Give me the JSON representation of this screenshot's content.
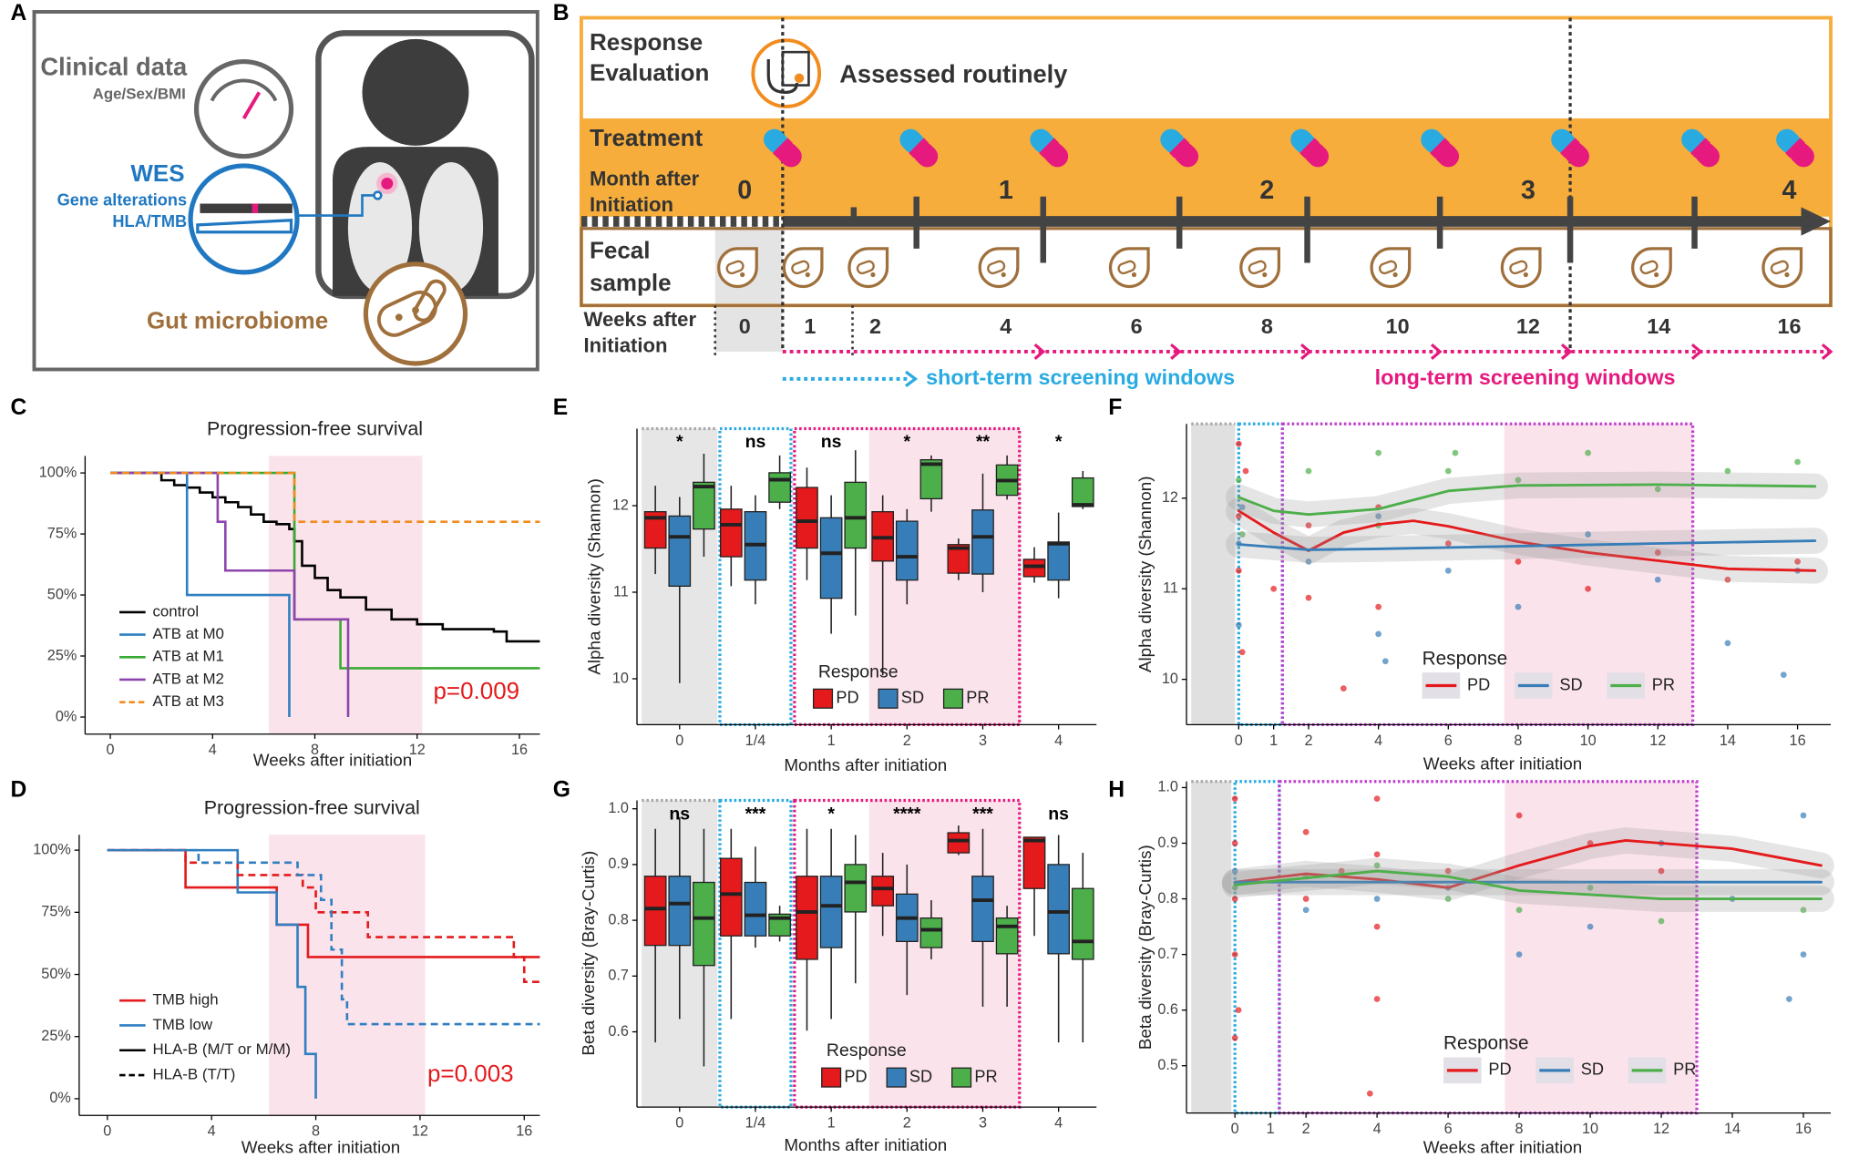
{
  "panel_a": {
    "panel": "A",
    "clinical_title": "Clinical data",
    "clinical_sub": "Age/Sex/BMI",
    "wes_title": "WES",
    "wes_line1": "Gene alterations",
    "wes_line2": "HLA/TMB",
    "microbiome": "Gut microbiome"
  },
  "panel_b": {
    "panel": "B",
    "response_lines": [
      "Response",
      "Evaluation"
    ],
    "assessed": "Assessed routinely",
    "treatment": "Treatment",
    "month_lines": [
      "Month after",
      "Initiation"
    ],
    "months": [
      0,
      1,
      2,
      3,
      4
    ],
    "fecal_lines": [
      "Fecal",
      "sample"
    ],
    "weeks_lines": [
      "Weeks after",
      "Initiation"
    ],
    "weeks": [
      0,
      1,
      2,
      4,
      6,
      8,
      10,
      12,
      14,
      16
    ],
    "short_term": "short-term screening windows",
    "long_term": "long-term screening windows"
  },
  "chart_data": [
    {
      "panel": "C",
      "type": "km",
      "title": "Progression-free survival",
      "xlabel": "Weeks after initiation",
      "xlim": [
        -0.8,
        16.8
      ],
      "xticks": [
        0,
        4,
        8,
        12,
        16
      ],
      "ylim": [
        -7,
        107
      ],
      "yticks": [
        {
          "value": 0,
          "label": "0%"
        },
        {
          "value": 25,
          "label": "25%"
        },
        {
          "value": 50,
          "label": "50%"
        },
        {
          "value": 75,
          "label": "75%"
        },
        {
          "value": 100,
          "label": "100%"
        }
      ],
      "shade": [
        6.2,
        12.2
      ],
      "annotation": "p=0.009",
      "annotation_color": "#e41a1c",
      "series": [
        {
          "name": "control",
          "color": "#000000",
          "dash": false,
          "x": [
            0,
            2,
            2.5,
            3,
            3.5,
            4,
            4.5,
            5,
            5.5,
            6,
            6.5,
            7,
            7.2,
            7.5,
            8,
            8.5,
            9,
            10,
            11,
            12,
            13,
            14,
            15,
            15.5,
            16.8
          ],
          "values": [
            100,
            97,
            95,
            94,
            92,
            90,
            88,
            86,
            83,
            80,
            79,
            77,
            72,
            62,
            57,
            52,
            49,
            44,
            40,
            38,
            36,
            36,
            35,
            31,
            31
          ]
        },
        {
          "name": "ATB at M0",
          "color": "#2f7fc1",
          "dash": false,
          "x": [
            0,
            3,
            7
          ],
          "values": [
            100,
            50,
            0
          ]
        },
        {
          "name": "ATB at M1",
          "color": "#3aaa35",
          "dash": false,
          "x": [
            0,
            7.2,
            9,
            16.8
          ],
          "values": [
            100,
            40,
            20,
            20
          ]
        },
        {
          "name": "ATB at M2",
          "color": "#8e44ad",
          "dash": false,
          "x": [
            0,
            4.2,
            4.5,
            7.2,
            9.3
          ],
          "values": [
            100,
            80,
            60,
            40,
            0
          ]
        },
        {
          "name": "ATB at M3",
          "color": "#f28c1e",
          "dash": true,
          "x": [
            0,
            7.2,
            16.8
          ],
          "values": [
            100,
            80,
            80
          ]
        }
      ]
    },
    {
      "panel": "D",
      "type": "km",
      "title": "Progression-free survival",
      "xlabel": "Weeks after initiation",
      "xlim": [
        -0.9,
        16.6
      ],
      "xticks": [
        0,
        4,
        8,
        12,
        16
      ],
      "ylim": [
        -6.7,
        106.2
      ],
      "yticks": [
        {
          "value": 0,
          "label": "0%"
        },
        {
          "value": 25,
          "label": "25%"
        },
        {
          "value": 50,
          "label": "50%"
        },
        {
          "value": 75,
          "label": "75%"
        },
        {
          "value": 100,
          "label": "100%"
        }
      ],
      "shade": [
        6.2,
        12.2
      ],
      "annotation": "p=0.003",
      "annotation_color": "#e41a1c",
      "legend": [
        {
          "label": "TMB high",
          "color": "#e41a1c",
          "dash": false
        },
        {
          "label": "TMB low",
          "color": "#2f7fc1",
          "dash": false
        },
        {
          "label": "HLA-B (M/T or M/M)",
          "color": "#000000",
          "dash": false
        },
        {
          "label": "HLA-B (T/T)",
          "color": "#000000",
          "dash": true
        }
      ],
      "series": [
        {
          "color": "#e41a1c",
          "dash": false,
          "x": [
            0,
            3,
            6.5,
            7.7,
            16.6
          ],
          "values": [
            100,
            85,
            70,
            57,
            57
          ]
        },
        {
          "color": "#2f7fc1",
          "dash": false,
          "x": [
            0,
            5,
            6.5,
            7.3,
            7.6,
            8
          ],
          "values": [
            100,
            83,
            70,
            45,
            18,
            0
          ]
        },
        {
          "color": "#e41a1c",
          "dash": true,
          "x": [
            0,
            3,
            5,
            7.5,
            8,
            10,
            15.6,
            16,
            16.6
          ],
          "values": [
            100,
            95,
            90,
            85,
            75,
            65,
            57,
            47,
            47
          ]
        },
        {
          "color": "#2f7fc1",
          "dash": true,
          "x": [
            0,
            3.5,
            7.3,
            8.2,
            8.6,
            9,
            9.2,
            16.6
          ],
          "values": [
            100,
            95,
            90,
            80,
            60,
            40,
            30,
            30
          ]
        }
      ]
    },
    {
      "panel": "E",
      "type": "box",
      "ylabel": "Alpha diversity (Shannon)",
      "xlabel": "Months after initiation",
      "categories": [
        "0",
        "1/4",
        "1",
        "2",
        "3",
        "4"
      ],
      "significance": [
        "*",
        "ns",
        "ns",
        "*",
        "**",
        "*"
      ],
      "ylim": [
        9.47,
        12.89
      ],
      "yticks": [
        10,
        11,
        12
      ],
      "legend_title": "Response",
      "series": [
        {
          "name": "PD",
          "color": "#e41a1c",
          "values": [
            [
              11.21,
              11.51,
              11.86,
              11.93,
              12.23
            ],
            [
              11.07,
              11.41,
              11.78,
              11.96,
              12.23
            ],
            [
              11.14,
              11.51,
              11.82,
              12.21,
              12.44
            ],
            [
              10.04,
              11.36,
              11.63,
              11.93,
              12.12
            ],
            [
              11.14,
              11.22,
              11.51,
              11.55,
              11.62
            ],
            [
              11.11,
              11.18,
              11.3,
              11.38,
              11.52
            ]
          ]
        },
        {
          "name": "SD",
          "color": "#377eb8",
          "values": [
            [
              9.95,
              11.07,
              11.64,
              11.88,
              12.1
            ],
            [
              10.86,
              11.14,
              11.55,
              11.93,
              12.12
            ],
            [
              10.52,
              10.93,
              11.45,
              11.86,
              12.12
            ],
            [
              10.86,
              11.14,
              11.41,
              11.82,
              11.96
            ],
            [
              11.0,
              11.21,
              11.64,
              11.95,
              12.37
            ],
            [
              10.93,
              11.14,
              11.56,
              11.58,
              11.92
            ]
          ]
        },
        {
          "name": "PR",
          "color": "#4daf4a",
          "values": [
            [
              11.41,
              11.73,
              12.22,
              12.27,
              12.6
            ],
            [
              11.96,
              12.04,
              12.3,
              12.38,
              12.58
            ],
            [
              10.73,
              11.51,
              11.86,
              12.27,
              12.64
            ],
            [
              11.93,
              12.08,
              12.48,
              12.53,
              12.58
            ],
            [
              12.07,
              12.12,
              12.29,
              12.47,
              12.58
            ],
            [
              11.96,
              11.99,
              12.01,
              12.32,
              12.4
            ]
          ]
        }
      ]
    },
    {
      "panel": "F",
      "type": "scatter",
      "ylabel": "Alpha diversity (Shannon)",
      "xlabel": "Weeks after initiation",
      "xlim": [
        -1.36,
        16.95
      ],
      "xticks": [
        0,
        1,
        2,
        4,
        6,
        8,
        10,
        12,
        14,
        16
      ],
      "ylim": [
        9.5,
        12.82
      ],
      "yticks": [
        10,
        11,
        12
      ],
      "legend_title": "Response",
      "series": [
        {
          "name": "PD",
          "color": "#e41a1c",
          "x": [
            0,
            0,
            0,
            0.2,
            1,
            2,
            2,
            4,
            4,
            6,
            8,
            10,
            12,
            14,
            16,
            0.1,
            3
          ],
          "values": [
            12.6,
            11.8,
            11.2,
            12.3,
            11.0,
            10.9,
            11.7,
            11.9,
            10.8,
            11.5,
            11.3,
            11.0,
            11.4,
            11.1,
            11.3,
            10.3,
            9.9
          ],
          "smooth_x": [
            0,
            1,
            2,
            3,
            4,
            5,
            6,
            8,
            10,
            12,
            14,
            16.5
          ],
          "smooth": [
            11.86,
            11.62,
            11.42,
            11.62,
            11.71,
            11.75,
            11.69,
            11.52,
            11.4,
            11.31,
            11.22,
            11.2
          ]
        },
        {
          "name": "SD",
          "color": "#377eb8",
          "x": [
            0,
            0,
            0.1,
            2,
            4,
            4,
            6,
            8,
            10,
            12,
            14,
            15.6,
            16,
            4.2
          ],
          "values": [
            11.5,
            10.6,
            11.9,
            11.3,
            10.5,
            11.8,
            11.2,
            10.8,
            11.6,
            11.1,
            10.4,
            10.05,
            11.2,
            10.2
          ],
          "smooth_x": [
            0,
            2,
            4,
            8,
            12,
            16.5
          ],
          "smooth": [
            11.49,
            11.43,
            11.44,
            11.47,
            11.5,
            11.53
          ]
        },
        {
          "name": "PR",
          "color": "#4daf4a",
          "x": [
            0,
            0.1,
            2,
            4,
            4,
            6,
            8,
            10,
            12,
            14,
            16,
            6.2
          ],
          "values": [
            12.2,
            11.6,
            12.3,
            12.5,
            11.7,
            12.3,
            12.2,
            12.5,
            12.1,
            12.3,
            12.4,
            12.5
          ],
          "smooth_x": [
            0,
            1,
            2,
            4,
            6,
            8,
            12,
            16.5
          ],
          "smooth": [
            12.01,
            11.86,
            11.82,
            11.88,
            12.08,
            12.14,
            12.15,
            12.13
          ]
        }
      ]
    },
    {
      "panel": "G",
      "type": "box",
      "ylabel": "Beta diversity (Bray-Curtis)",
      "xlabel": "Months after initiation",
      "categories": [
        "0",
        "1/4",
        "1",
        "2",
        "3",
        "4"
      ],
      "significance": [
        "ns",
        "***",
        "*",
        "****",
        "***",
        "ns"
      ],
      "ylim": [
        0.465,
        1.015
      ],
      "yticks": [
        0.6,
        0.7,
        0.8,
        0.9,
        {
          "value": 1,
          "label": "1.0"
        }
      ],
      "legend_title": "Response",
      "series": [
        {
          "name": "PD",
          "color": "#e41a1c",
          "values": [
            [
              0.581,
              0.755,
              0.821,
              0.879,
              0.964
            ],
            [
              0.623,
              0.772,
              0.847,
              0.911,
              0.964
            ],
            [
              0.602,
              0.73,
              0.815,
              0.879,
              0.964
            ],
            [
              0.772,
              0.826,
              0.857,
              0.879,
              0.921
            ],
            [
              0.917,
              0.921,
              0.943,
              0.957,
              0.97
            ],
            [
              0.772,
              0.857,
              0.943,
              0.949,
              0.949
            ]
          ]
        },
        {
          "name": "SD",
          "color": "#377eb8",
          "values": [
            [
              0.623,
              0.755,
              0.83,
              0.879,
              0.985
            ],
            [
              0.751,
              0.772,
              0.809,
              0.868,
              0.932
            ],
            [
              0.623,
              0.751,
              0.826,
              0.879,
              0.964
            ],
            [
              0.666,
              0.762,
              0.804,
              0.847,
              0.9
            ],
            [
              0.645,
              0.762,
              0.836,
              0.879,
              0.964
            ],
            [
              0.581,
              0.74,
              0.815,
              0.9,
              0.953
            ]
          ]
        },
        {
          "name": "PR",
          "color": "#4daf4a",
          "values": [
            [
              0.538,
              0.719,
              0.804,
              0.868,
              0.964
            ],
            [
              0.762,
              0.772,
              0.804,
              0.811,
              0.826
            ],
            [
              0.687,
              0.815,
              0.868,
              0.9,
              0.953
            ],
            [
              0.73,
              0.751,
              0.783,
              0.804,
              0.836
            ],
            [
              0.645,
              0.74,
              0.789,
              0.804,
              0.826
            ],
            [
              0.581,
              0.73,
              0.762,
              0.857,
              0.921
            ]
          ]
        }
      ]
    },
    {
      "panel": "H",
      "type": "scatter",
      "ylabel": "Beta diversity (Bray-Curtis)",
      "xlabel": "Weeks after initiation",
      "xlim": [
        -1.23,
        16.77
      ],
      "xticks": [
        0,
        1,
        2,
        4,
        6,
        8,
        10,
        12,
        14,
        16
      ],
      "ylim": [
        0.415,
        1.011
      ],
      "yticks": [
        0.5,
        0.6,
        0.7,
        0.8,
        0.9,
        {
          "value": 1,
          "label": "1.0"
        }
      ],
      "legend_title": "Response",
      "series": [
        {
          "name": "PD",
          "color": "#e41a1c",
          "x": [
            0,
            0,
            0,
            0,
            0.1,
            0,
            2,
            2,
            3,
            4,
            4,
            4,
            4,
            3.8,
            6,
            8,
            10,
            12
          ],
          "values": [
            0.98,
            0.9,
            0.8,
            0.7,
            0.6,
            0.55,
            0.92,
            0.8,
            0.85,
            0.98,
            0.88,
            0.75,
            0.62,
            0.45,
            0.85,
            0.95,
            0.9,
            0.85
          ],
          "smooth_x": [
            0,
            2,
            4,
            6,
            8,
            10,
            11,
            12,
            14,
            16.5
          ],
          "smooth": [
            0.83,
            0.845,
            0.835,
            0.82,
            0.86,
            0.895,
            0.905,
            0.9,
            0.89,
            0.86
          ]
        },
        {
          "name": "SD",
          "color": "#377eb8",
          "x": [
            0,
            2,
            4,
            6,
            8,
            10,
            12,
            14,
            16,
            16,
            15.6
          ],
          "values": [
            0.85,
            0.78,
            0.8,
            0.82,
            0.7,
            0.75,
            0.9,
            0.8,
            0.7,
            0.95,
            0.62
          ],
          "smooth_x": [
            0,
            4,
            8,
            12,
            16.5
          ],
          "smooth": [
            0.83,
            0.83,
            0.83,
            0.83,
            0.83
          ]
        },
        {
          "name": "PR",
          "color": "#4daf4a",
          "x": [
            0,
            2,
            4,
            6,
            8,
            10,
            12,
            16
          ],
          "values": [
            0.82,
            0.84,
            0.86,
            0.8,
            0.78,
            0.82,
            0.76,
            0.78
          ],
          "smooth_x": [
            0,
            4,
            6,
            8,
            12,
            16.5
          ],
          "smooth": [
            0.825,
            0.85,
            0.84,
            0.815,
            0.8,
            0.8
          ]
        }
      ]
    }
  ]
}
